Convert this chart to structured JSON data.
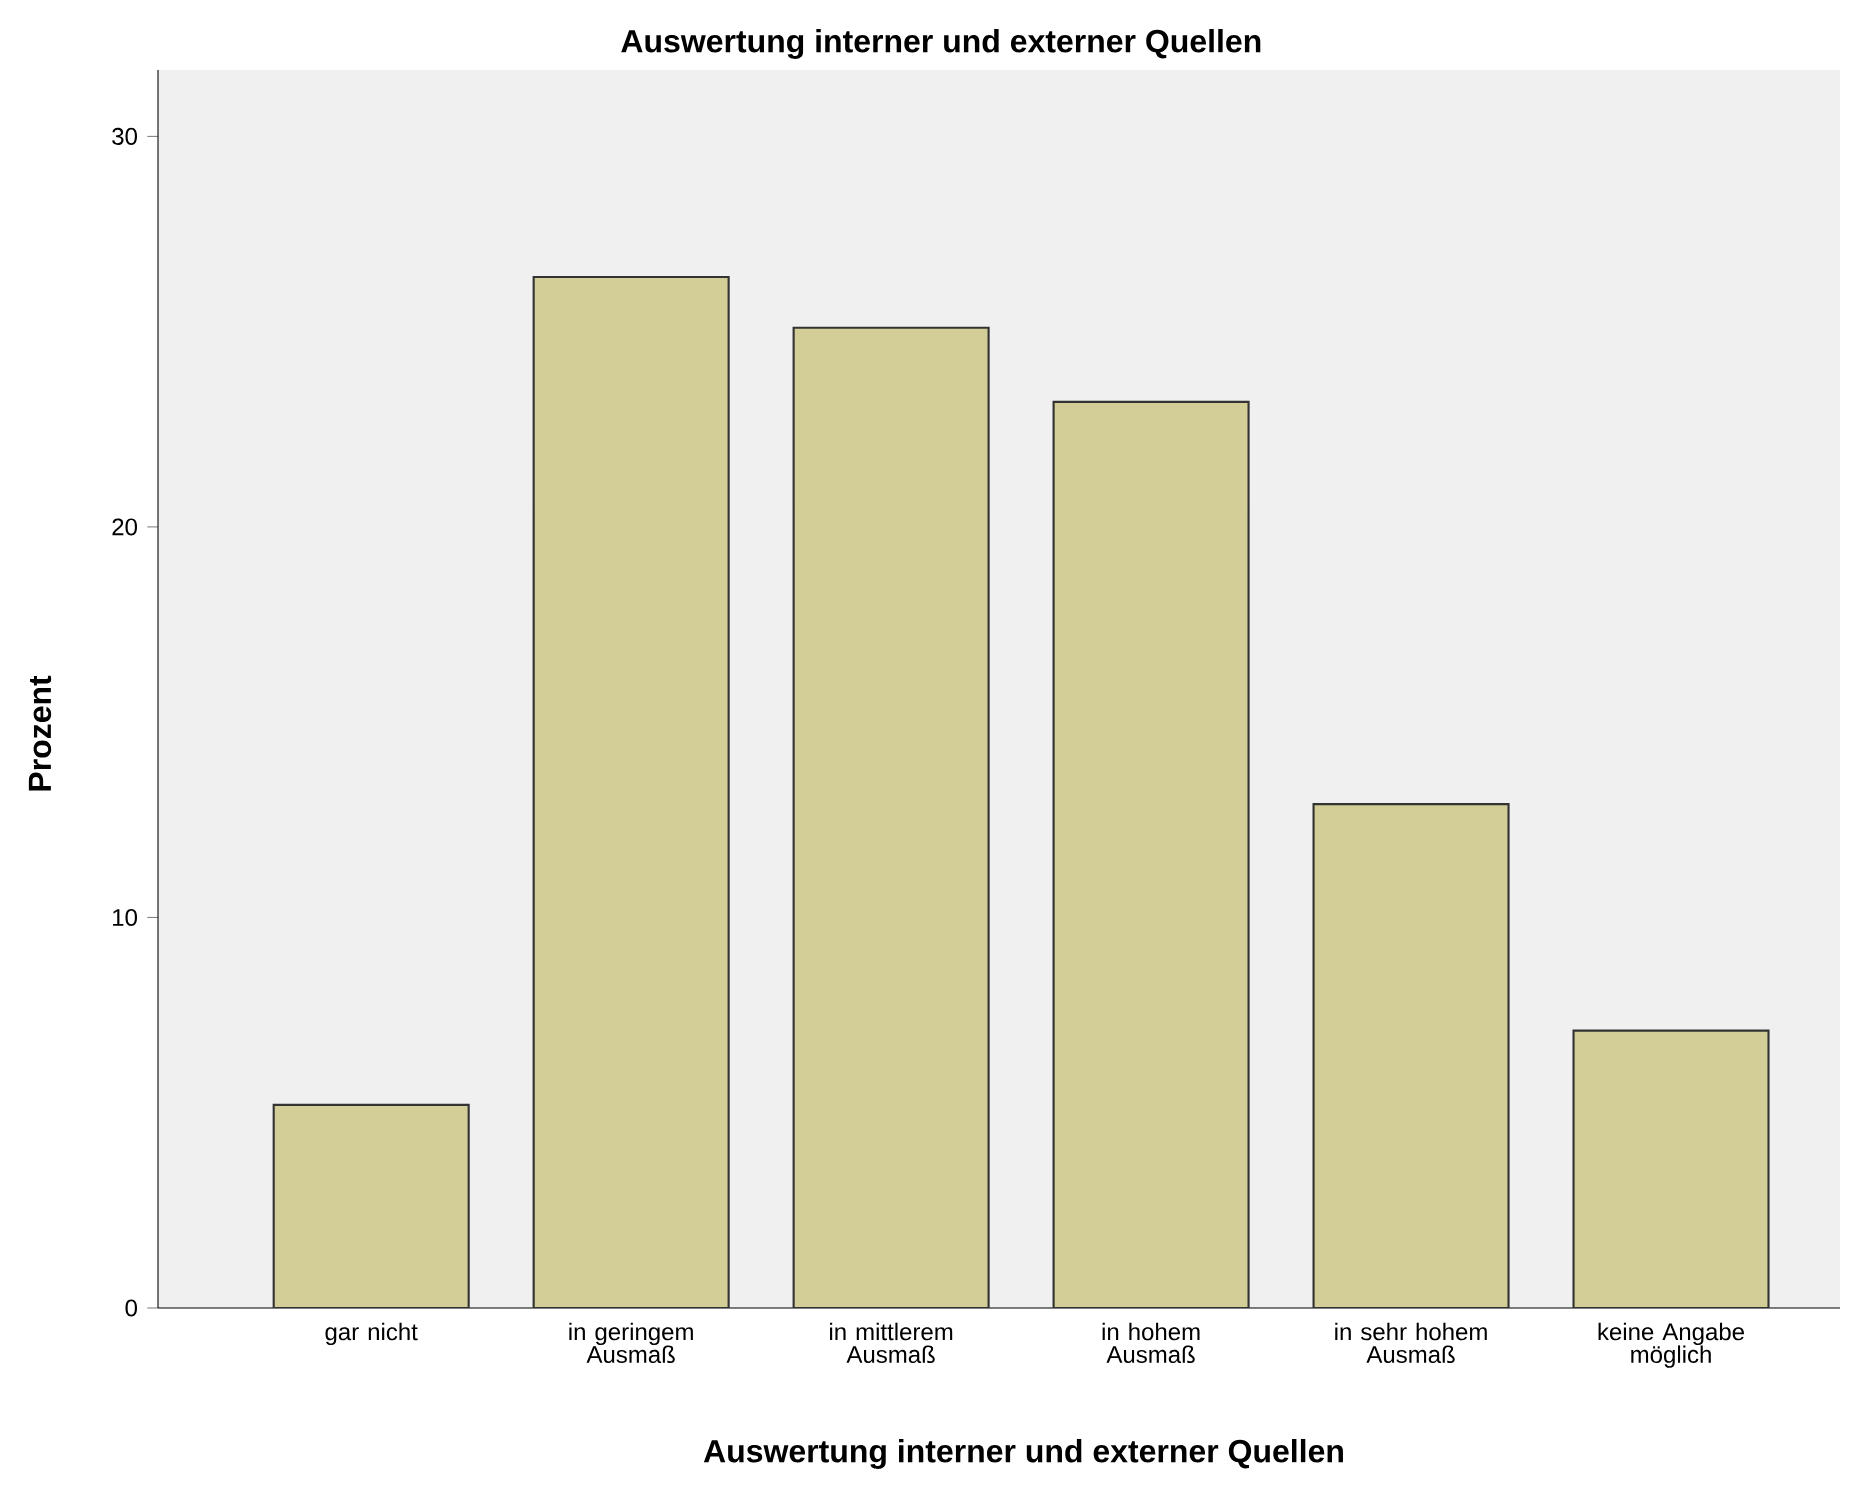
{
  "chart_data": {
    "type": "bar",
    "title": "Auswertung interner und externer Quellen",
    "xlabel": "Auswertung interner und externer Quellen",
    "ylabel": "Prozent",
    "categories": [
      "gar nicht",
      "in geringem Ausmaß",
      "in mittlerem Ausmaß",
      "in hohem Ausmaß",
      "in sehr hohem Ausmaß",
      "keine Angabe möglich"
    ],
    "values": [
      5.2,
      26.4,
      25.1,
      23.2,
      12.9,
      7.1
    ],
    "color": "#d3ce97",
    "ylim": [
      0,
      31.7
    ],
    "yticks": [
      0,
      10,
      20,
      30
    ]
  }
}
